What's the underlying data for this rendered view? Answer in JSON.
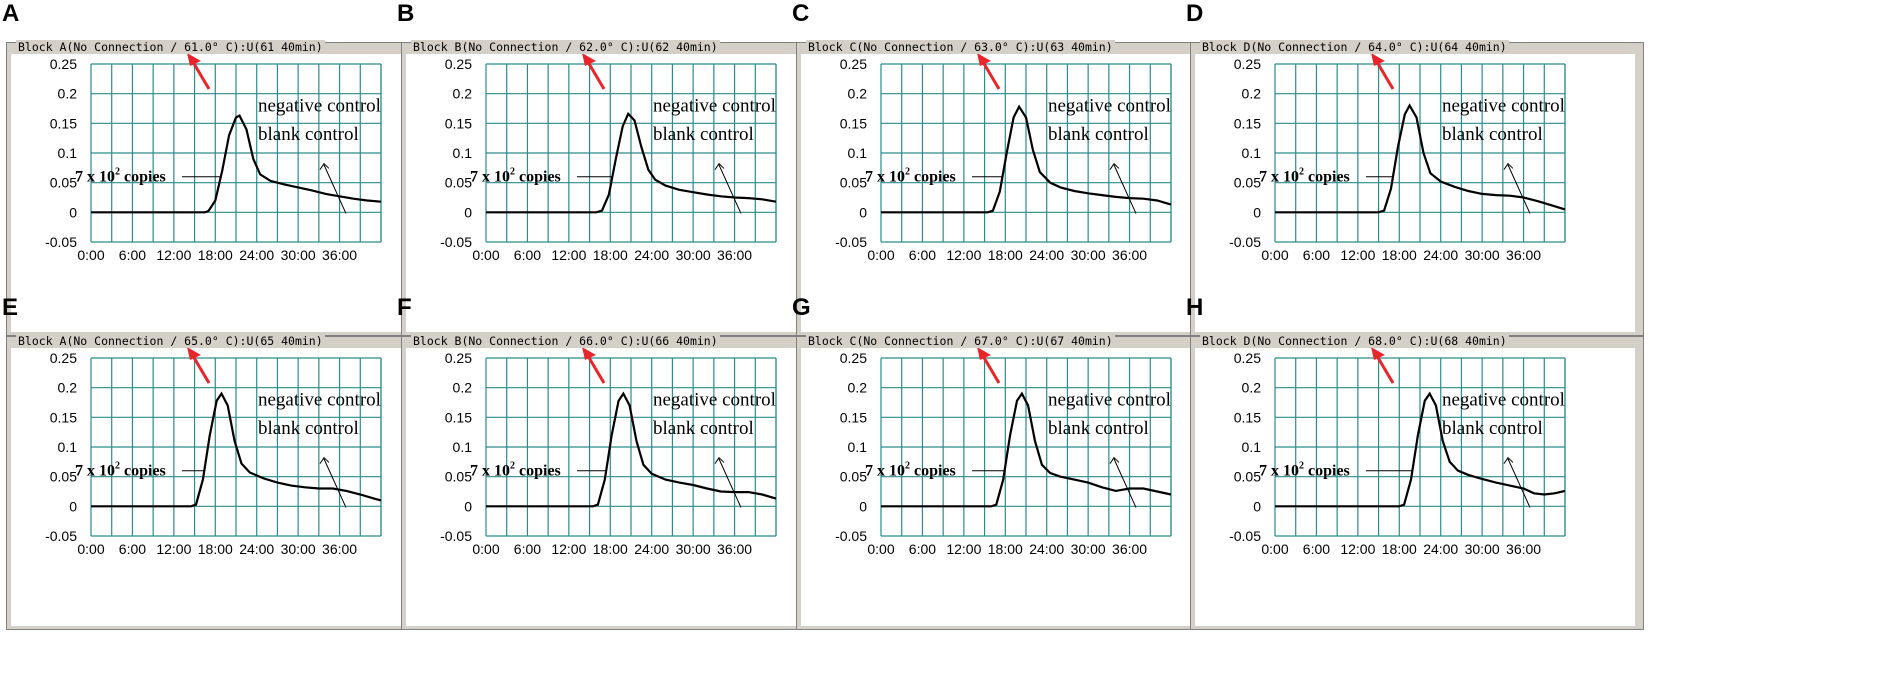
{
  "chart_data": [
    {
      "type": "line",
      "panel": "A",
      "title": "Block A(No Connection / 61.0° C):U(61 40min)",
      "x": [
        "0:00",
        "6:00",
        "12:00",
        "18:00",
        "24:00",
        "30:00",
        "36:00"
      ],
      "y_ticks": [
        "0.25",
        "0.2",
        "0.15",
        "0.1",
        "0.05",
        "0",
        "-0.05"
      ],
      "ylim": [
        -0.05,
        0.25
      ],
      "xlim": [
        0,
        42
      ],
      "grid": true,
      "series": [
        {
          "name": "7 x 10² copies",
          "points": [
            [
              0,
              0
            ],
            [
              16.5,
              0
            ],
            [
              17,
              0.002
            ],
            [
              18,
              0.02
            ],
            [
              19,
              0.07
            ],
            [
              20,
              0.13
            ],
            [
              21,
              0.16
            ],
            [
              21.5,
              0.163
            ],
            [
              22.5,
              0.14
            ],
            [
              23.5,
              0.09
            ],
            [
              24.5,
              0.064
            ],
            [
              26,
              0.053
            ],
            [
              28,
              0.047
            ],
            [
              30,
              0.042
            ],
            [
              32,
              0.037
            ],
            [
              34,
              0.031
            ],
            [
              36,
              0.027
            ],
            [
              38,
              0.023
            ],
            [
              40,
              0.02
            ],
            [
              42,
              0.018
            ]
          ]
        }
      ],
      "annotations": [
        "7 x 10² copies",
        "negative control",
        "blank control"
      ],
      "series_label": "7 x 10",
      "series_sup": "2",
      "series_suffix": " copies",
      "neg_label": "negative control",
      "blank_label": "blank control",
      "arrow_color": "#e8262a",
      "curve_color": "#000000",
      "grid_color": "#2a8c8c"
    },
    {
      "type": "line",
      "panel": "B",
      "title": "Block B(No Connection / 62.0° C):U(62 40min)",
      "x": [
        "0:00",
        "6:00",
        "12:00",
        "18:00",
        "24:00",
        "30:00",
        "36:00"
      ],
      "y_ticks": [
        "0.25",
        "0.2",
        "0.15",
        "0.1",
        "0.05",
        "0",
        "-0.05"
      ],
      "ylim": [
        -0.05,
        0.25
      ],
      "xlim": [
        0,
        42
      ],
      "grid": true,
      "series": [
        {
          "name": "7 x 10² copies",
          "points": [
            [
              0,
              0
            ],
            [
              16,
              0
            ],
            [
              16.8,
              0.003
            ],
            [
              17.8,
              0.03
            ],
            [
              18.8,
              0.09
            ],
            [
              19.8,
              0.145
            ],
            [
              20.6,
              0.166
            ],
            [
              21.5,
              0.155
            ],
            [
              22.5,
              0.11
            ],
            [
              23.5,
              0.072
            ],
            [
              24.5,
              0.055
            ],
            [
              26,
              0.045
            ],
            [
              28,
              0.038
            ],
            [
              30,
              0.034
            ],
            [
              32,
              0.03
            ],
            [
              34,
              0.027
            ],
            [
              36,
              0.025
            ],
            [
              38,
              0.024
            ],
            [
              40,
              0.022
            ],
            [
              42,
              0.018
            ]
          ]
        }
      ],
      "series_label": "7 x 10",
      "series_sup": "2",
      "series_suffix": " copies",
      "neg_label": "negative control",
      "blank_label": "blank control",
      "arrow_color": "#e8262a",
      "curve_color": "#000000",
      "grid_color": "#2a8c8c"
    },
    {
      "type": "line",
      "panel": "C",
      "title": "Block C(No Connection / 63.0° C):U(63 40min)",
      "x": [
        "0:00",
        "6:00",
        "12:00",
        "18:00",
        "24:00",
        "30:00",
        "36:00"
      ],
      "y_ticks": [
        "0.25",
        "0.2",
        "0.15",
        "0.1",
        "0.05",
        "0",
        "-0.05"
      ],
      "ylim": [
        -0.05,
        0.25
      ],
      "xlim": [
        0,
        42
      ],
      "grid": true,
      "series": [
        {
          "name": "7 x 10² copies",
          "points": [
            [
              0,
              0
            ],
            [
              15.5,
              0
            ],
            [
              16.2,
              0.003
            ],
            [
              17.2,
              0.035
            ],
            [
              18.2,
              0.1
            ],
            [
              19.2,
              0.16
            ],
            [
              20,
              0.178
            ],
            [
              21,
              0.16
            ],
            [
              22,
              0.105
            ],
            [
              23,
              0.068
            ],
            [
              24.5,
              0.05
            ],
            [
              26,
              0.042
            ],
            [
              28,
              0.036
            ],
            [
              30,
              0.032
            ],
            [
              32,
              0.029
            ],
            [
              34,
              0.026
            ],
            [
              36,
              0.024
            ],
            [
              38,
              0.023
            ],
            [
              40,
              0.02
            ],
            [
              42,
              0.013
            ]
          ]
        }
      ],
      "series_label": "7 x 10",
      "series_sup": "2",
      "series_suffix": " copies",
      "neg_label": "negative control",
      "blank_label": "blank control",
      "arrow_color": "#e8262a",
      "curve_color": "#000000",
      "grid_color": "#2a8c8c"
    },
    {
      "type": "line",
      "panel": "D",
      "title": "Block D(No Connection / 64.0° C):U(64 40min)",
      "x": [
        "0:00",
        "6:00",
        "12:00",
        "18:00",
        "24:00",
        "30:00",
        "36:00"
      ],
      "y_ticks": [
        "0.25",
        "0.2",
        "0.15",
        "0.1",
        "0.05",
        "0",
        "-0.05"
      ],
      "ylim": [
        -0.05,
        0.25
      ],
      "xlim": [
        0,
        42
      ],
      "grid": true,
      "series": [
        {
          "name": "7 x 10² copies",
          "points": [
            [
              0,
              0
            ],
            [
              15,
              0
            ],
            [
              15.8,
              0.003
            ],
            [
              16.8,
              0.04
            ],
            [
              17.8,
              0.11
            ],
            [
              18.8,
              0.165
            ],
            [
              19.5,
              0.18
            ],
            [
              20.5,
              0.16
            ],
            [
              21.5,
              0.1
            ],
            [
              22.5,
              0.066
            ],
            [
              24,
              0.052
            ],
            [
              26,
              0.043
            ],
            [
              28,
              0.036
            ],
            [
              30,
              0.031
            ],
            [
              32,
              0.029
            ],
            [
              34,
              0.028
            ],
            [
              36,
              0.025
            ],
            [
              38,
              0.019
            ],
            [
              40,
              0.012
            ],
            [
              42,
              0.005
            ]
          ]
        }
      ],
      "series_label": "7 x 10",
      "series_sup": "2",
      "series_suffix": " copies",
      "neg_label": "negative control",
      "blank_label": "blank control",
      "arrow_color": "#e8262a",
      "curve_color": "#000000",
      "grid_color": "#2a8c8c"
    },
    {
      "type": "line",
      "panel": "E",
      "title": "Block A(No Connection / 65.0° C):U(65 40min)",
      "x": [
        "0:00",
        "6:00",
        "12:00",
        "18:00",
        "24:00",
        "30:00",
        "36:00"
      ],
      "y_ticks": [
        "0.25",
        "0.2",
        "0.15",
        "0.1",
        "0.05",
        "0",
        "-0.05"
      ],
      "ylim": [
        -0.05,
        0.25
      ],
      "xlim": [
        0,
        42
      ],
      "grid": true,
      "series": [
        {
          "name": "7 x 10² copies",
          "points": [
            [
              0,
              0
            ],
            [
              14.5,
              0
            ],
            [
              15.2,
              0.003
            ],
            [
              16.2,
              0.045
            ],
            [
              17.2,
              0.12
            ],
            [
              18.2,
              0.178
            ],
            [
              18.9,
              0.19
            ],
            [
              19.8,
              0.17
            ],
            [
              20.8,
              0.11
            ],
            [
              21.8,
              0.072
            ],
            [
              23,
              0.057
            ],
            [
              25,
              0.047
            ],
            [
              27,
              0.04
            ],
            [
              29,
              0.035
            ],
            [
              31,
              0.032
            ],
            [
              33,
              0.03
            ],
            [
              35,
              0.03
            ],
            [
              37,
              0.026
            ],
            [
              39,
              0.02
            ],
            [
              41,
              0.013
            ],
            [
              42,
              0.01
            ]
          ]
        }
      ],
      "series_label": "7 x 10",
      "series_sup": "2",
      "series_suffix": " copies",
      "neg_label": "negative control",
      "blank_label": "blank control",
      "arrow_color": "#e8262a",
      "curve_color": "#000000",
      "grid_color": "#2a8c8c"
    },
    {
      "type": "line",
      "panel": "F",
      "title": "Block B(No Connection / 66.0° C):U(66 40min)",
      "x": [
        "0:00",
        "6:00",
        "12:00",
        "18:00",
        "24:00",
        "30:00",
        "36:00"
      ],
      "y_ticks": [
        "0.25",
        "0.2",
        "0.15",
        "0.1",
        "0.05",
        "0",
        "-0.05"
      ],
      "ylim": [
        -0.05,
        0.25
      ],
      "xlim": [
        0,
        42
      ],
      "grid": true,
      "series": [
        {
          "name": "7 x 10² copies",
          "points": [
            [
              0,
              0
            ],
            [
              15.5,
              0
            ],
            [
              16.2,
              0.003
            ],
            [
              17.2,
              0.045
            ],
            [
              18.2,
              0.12
            ],
            [
              19.2,
              0.178
            ],
            [
              19.9,
              0.19
            ],
            [
              20.8,
              0.17
            ],
            [
              21.8,
              0.11
            ],
            [
              22.8,
              0.07
            ],
            [
              24,
              0.055
            ],
            [
              26,
              0.045
            ],
            [
              28,
              0.04
            ],
            [
              30,
              0.036
            ],
            [
              32,
              0.03
            ],
            [
              34,
              0.025
            ],
            [
              36,
              0.024
            ],
            [
              38,
              0.024
            ],
            [
              40,
              0.02
            ],
            [
              42,
              0.013
            ]
          ]
        }
      ],
      "series_label": "7 x 10",
      "series_sup": "2",
      "series_suffix": " copies",
      "neg_label": "negative control",
      "blank_label": "blank control",
      "arrow_color": "#e8262a",
      "curve_color": "#000000",
      "grid_color": "#2a8c8c"
    },
    {
      "type": "line",
      "panel": "G",
      "title": "Block C(No Connection / 67.0° C):U(67 40min)",
      "x": [
        "0:00",
        "6:00",
        "12:00",
        "18:00",
        "24:00",
        "30:00",
        "36:00"
      ],
      "y_ticks": [
        "0.25",
        "0.2",
        "0.15",
        "0.1",
        "0.05",
        "0",
        "-0.05"
      ],
      "ylim": [
        -0.05,
        0.25
      ],
      "xlim": [
        0,
        42
      ],
      "grid": true,
      "series": [
        {
          "name": "7 x 10² copies",
          "points": [
            [
              0,
              0
            ],
            [
              16,
              0
            ],
            [
              16.7,
              0.003
            ],
            [
              17.7,
              0.045
            ],
            [
              18.7,
              0.12
            ],
            [
              19.7,
              0.178
            ],
            [
              20.4,
              0.19
            ],
            [
              21.3,
              0.17
            ],
            [
              22.3,
              0.11
            ],
            [
              23.3,
              0.07
            ],
            [
              24.5,
              0.056
            ],
            [
              26,
              0.05
            ],
            [
              28,
              0.045
            ],
            [
              30,
              0.04
            ],
            [
              32,
              0.032
            ],
            [
              34,
              0.026
            ],
            [
              36,
              0.03
            ],
            [
              38,
              0.03
            ],
            [
              40,
              0.025
            ],
            [
              42,
              0.02
            ]
          ]
        }
      ],
      "series_label": "7 x 10",
      "series_sup": "2",
      "series_suffix": " copies",
      "neg_label": "negative control",
      "blank_label": "blank control",
      "arrow_color": "#e8262a",
      "curve_color": "#000000",
      "grid_color": "#2a8c8c"
    },
    {
      "type": "line",
      "panel": "H",
      "title": "Block D(No Connection / 68.0° C):U(68 40min)",
      "x": [
        "0:00",
        "6:00",
        "12:00",
        "18:00",
        "24:00",
        "30:00",
        "36:00"
      ],
      "y_ticks": [
        "0.25",
        "0.2",
        "0.15",
        "0.1",
        "0.05",
        "0",
        "-0.05"
      ],
      "ylim": [
        -0.05,
        0.25
      ],
      "xlim": [
        0,
        42
      ],
      "grid": true,
      "series": [
        {
          "name": "7 x 10² copies",
          "points": [
            [
              0,
              0
            ],
            [
              18,
              0
            ],
            [
              18.7,
              0.003
            ],
            [
              19.7,
              0.045
            ],
            [
              20.7,
              0.12
            ],
            [
              21.7,
              0.178
            ],
            [
              22.4,
              0.19
            ],
            [
              23.3,
              0.17
            ],
            [
              24.3,
              0.11
            ],
            [
              25.3,
              0.075
            ],
            [
              26.5,
              0.06
            ],
            [
              28,
              0.053
            ],
            [
              30,
              0.046
            ],
            [
              32,
              0.04
            ],
            [
              34,
              0.035
            ],
            [
              36,
              0.03
            ],
            [
              37.5,
              0.022
            ],
            [
              39,
              0.02
            ],
            [
              40.5,
              0.022
            ],
            [
              42,
              0.026
            ]
          ]
        }
      ],
      "series_label": "7 x 10",
      "series_sup": "2",
      "series_suffix": " copies",
      "neg_label": "negative control",
      "blank_label": "blank control",
      "arrow_color": "#e8262a",
      "curve_color": "#000000",
      "grid_color": "#2a8c8c"
    }
  ]
}
